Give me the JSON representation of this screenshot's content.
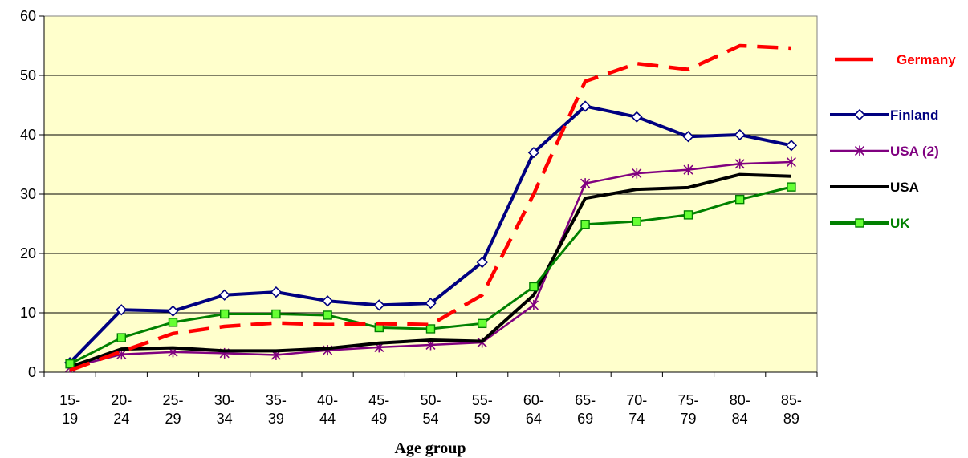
{
  "chart_data": {
    "type": "line",
    "title": "",
    "xlabel": "Age group",
    "ylabel": "",
    "ylim": [
      0,
      60
    ],
    "yticks": [
      0,
      10,
      20,
      30,
      40,
      50,
      60
    ],
    "grid": true,
    "legend_position": "right",
    "plot_background": "#FFFFCC",
    "categories": [
      [
        "15-",
        "19"
      ],
      [
        "20-",
        "24"
      ],
      [
        "25-",
        "29"
      ],
      [
        "30-",
        "34"
      ],
      [
        "35-",
        "39"
      ],
      [
        "40-",
        "44"
      ],
      [
        "45-",
        "49"
      ],
      [
        "50-",
        "54"
      ],
      [
        "55-",
        "59"
      ],
      [
        "60-",
        "64"
      ],
      [
        "65-",
        "69"
      ],
      [
        "70-",
        "74"
      ],
      [
        "75-",
        "79"
      ],
      [
        "80-",
        "84"
      ],
      [
        "85-",
        "89"
      ]
    ],
    "series": [
      {
        "name": "Germany",
        "color": "#FF0000",
        "style": "dashed",
        "marker": "none",
        "values": [
          0.3,
          3.5,
          6.5,
          7.7,
          8.3,
          8.0,
          8.2,
          8.0,
          13.0,
          30.0,
          49.0,
          52.0,
          51.0,
          55.0,
          54.6
        ]
      },
      {
        "name": "Finland",
        "color": "#000080",
        "style": "solid",
        "marker": "diamond",
        "values": [
          1.6,
          10.5,
          10.3,
          13.0,
          13.5,
          12.0,
          11.3,
          11.6,
          18.5,
          37.0,
          44.8,
          43.0,
          39.7,
          40.0,
          38.2
        ]
      },
      {
        "name": "USA (2)",
        "color": "#800080",
        "style": "solid",
        "marker": "star",
        "values": [
          0.8,
          3.0,
          3.4,
          3.2,
          2.9,
          3.7,
          4.2,
          4.6,
          5.0,
          11.3,
          31.8,
          33.5,
          34.1,
          35.1,
          35.4
        ]
      },
      {
        "name": "USA",
        "color": "#000000",
        "style": "solid",
        "marker": "none",
        "values": [
          0.9,
          3.9,
          4.1,
          3.6,
          3.6,
          4.0,
          4.9,
          5.4,
          5.2,
          13.0,
          29.3,
          30.8,
          31.1,
          33.3,
          33.0
        ]
      },
      {
        "name": "UK",
        "color": "#008000",
        "style": "solid",
        "marker": "square",
        "values": [
          1.4,
          5.8,
          8.4,
          9.8,
          9.8,
          9.6,
          7.5,
          7.3,
          8.2,
          14.4,
          24.9,
          25.4,
          26.5,
          29.1,
          31.2
        ]
      }
    ]
  }
}
